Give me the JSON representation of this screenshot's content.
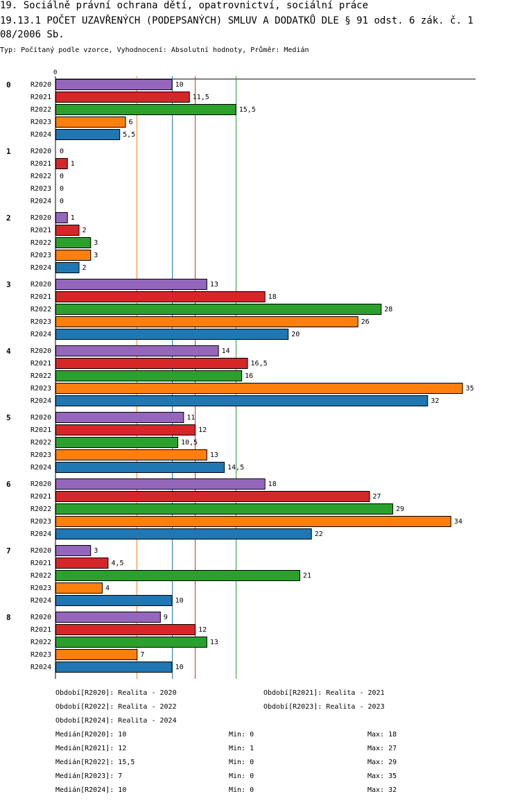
{
  "title_line1": "19. Sociálně právní ochrana dětí, opatrovnictví, sociální práce",
  "title_line2": "19.13.1 POČET UZAVŘENÝCH (PODEPSANÝCH) SMLUV A DODATKŮ DLE § 91 odst. 6 zák. č. 1",
  "title_line3": "08/2006 Sb.",
  "subtitle": "Typ: Počítaný podle vzorce, Vyhodnocení: Absolutní hodnoty, Průměr: Medián",
  "chart_data": {
    "type": "bar",
    "orientation": "horizontal",
    "axis_zero_label": "0",
    "xlim": [
      0,
      35.8
    ],
    "categories": [
      "0",
      "1",
      "2",
      "3",
      "4",
      "5",
      "6",
      "7",
      "8"
    ],
    "series": [
      {
        "name": "R2020",
        "color": "#9467bd",
        "values": [
          10,
          0,
          1,
          13,
          14,
          11,
          18,
          3,
          9
        ],
        "labels": [
          "10",
          "0",
          "1",
          "13",
          "14",
          "11",
          "18",
          "3",
          "9"
        ]
      },
      {
        "name": "R2021",
        "color": "#d62728",
        "values": [
          11.5,
          1,
          2,
          18,
          16.5,
          12,
          27,
          4.5,
          12
        ],
        "labels": [
          "11,5",
          "1",
          "2",
          "18",
          "16,5",
          "12",
          "27",
          "4,5",
          "12"
        ]
      },
      {
        "name": "R2022",
        "color": "#2ca02c",
        "values": [
          15.5,
          0,
          3,
          28,
          16,
          10.5,
          29,
          21,
          13
        ],
        "labels": [
          "15,5",
          "0",
          "3",
          "28",
          "16",
          "10,5",
          "29",
          "21",
          "13"
        ]
      },
      {
        "name": "R2023",
        "color": "#ff7f0e",
        "values": [
          6,
          0,
          3,
          26,
          35,
          13,
          34,
          4,
          7
        ],
        "labels": [
          "6",
          "0",
          "3",
          "26",
          "35",
          "13",
          "34",
          "4",
          "7"
        ]
      },
      {
        "name": "R2024",
        "color": "#1f77b4",
        "values": [
          5.5,
          0,
          2,
          20,
          32,
          14.5,
          22,
          10,
          10
        ],
        "labels": [
          "5,5",
          "0",
          "2",
          "20",
          "32",
          "14,5",
          "22",
          "10",
          "10"
        ]
      }
    ],
    "median_lines": [
      {
        "series": "R2020",
        "value": 10,
        "color": "#9467bd"
      },
      {
        "series": "R2021",
        "value": 12,
        "color": "#d62728"
      },
      {
        "series": "R2022",
        "value": 15.5,
        "color": "#2ca02c"
      },
      {
        "series": "R2023",
        "value": 7,
        "color": "#ff7f0e"
      },
      {
        "series": "R2024",
        "value": 10,
        "color": "#1f77b4"
      }
    ]
  },
  "legend": {
    "periods": [
      "Období[R2020]: Realita - 2020",
      "Období[R2021]: Realita - 2021",
      "Období[R2022]: Realita - 2022",
      "Období[R2023]: Realita - 2023",
      "Období[R2024]: Realita - 2024"
    ],
    "stats": [
      {
        "median": "Medián[R2020]: 10",
        "min": "Min: 0",
        "max": "Max: 18"
      },
      {
        "median": "Medián[R2021]: 12",
        "min": "Min: 1",
        "max": "Max: 27"
      },
      {
        "median": "Medián[R2022]: 15,5",
        "min": "Min: 0",
        "max": "Max: 29"
      },
      {
        "median": "Medián[R2023]: 7",
        "min": "Min: 0",
        "max": "Max: 35"
      },
      {
        "median": "Medián[R2024]: 10",
        "min": "Min: 0",
        "max": "Max: 32"
      }
    ]
  }
}
